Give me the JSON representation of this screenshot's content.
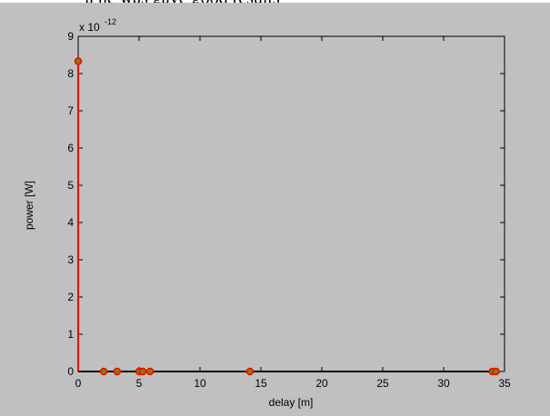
{
  "caption": {
    "text": "a ne was gave good results"
  },
  "chart_data": {
    "type": "scatter",
    "title": "",
    "xlabel": "delay [m]",
    "ylabel": "power [W]",
    "xlim": [
      0,
      35
    ],
    "ylim": [
      0,
      9
    ],
    "y_exponent_base": "x 10",
    "y_exponent_power": "-12",
    "xticks": [
      "0",
      "5",
      "10",
      "15",
      "20",
      "25",
      "30",
      "35"
    ],
    "yticks": [
      "0",
      "1",
      "2",
      "3",
      "4",
      "5",
      "6",
      "7",
      "8",
      "9"
    ],
    "grid": false,
    "legend": "none",
    "plot_background": "#c0c0c0",
    "figure_background": "#c0c0c0",
    "stem_color": "#ff0000",
    "marker_edge_color": "#ff0000",
    "marker_face_color": "#808000",
    "x": [
      0,
      2.1,
      3.2,
      5.0,
      5.3,
      5.9,
      14.1,
      34.0,
      34.3
    ],
    "y": [
      8.33,
      0,
      0,
      0,
      0,
      0,
      0,
      0,
      0
    ]
  }
}
